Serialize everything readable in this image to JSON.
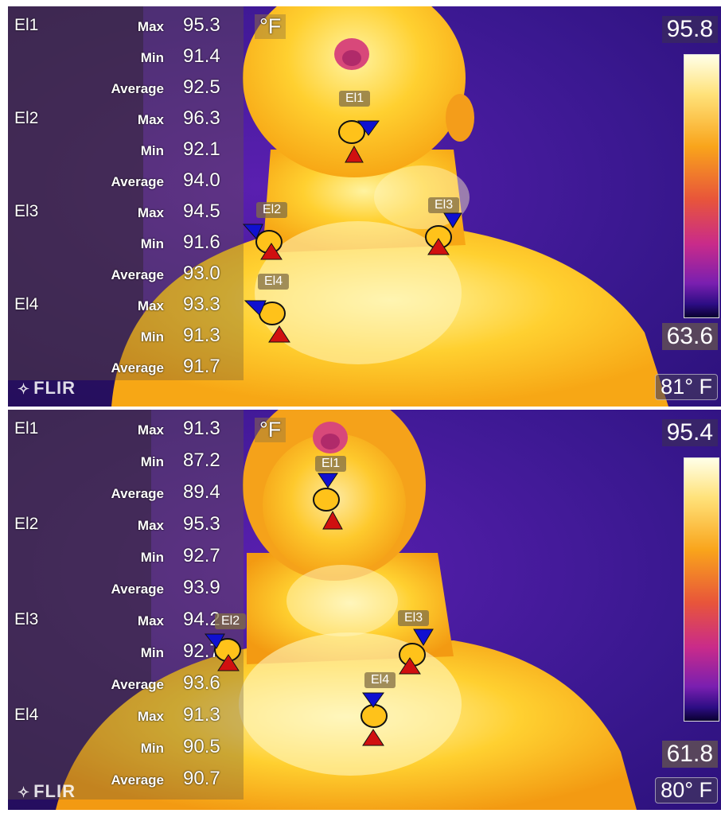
{
  "colors": {
    "background_purple": "#3a1890",
    "body_yellow": "#ffc21a",
    "hot_spot_marker": "#d01010",
    "cold_spot_marker": "#1010d0",
    "text": "#ffffff"
  },
  "top": {
    "unit": "°F",
    "scale_max": "95.8",
    "scale_min": "63.6",
    "mode_label": "81° F",
    "logo": "FLIR",
    "measurements": [
      {
        "id": "El1",
        "stats": [
          {
            "label": "Max",
            "value": "95.3"
          },
          {
            "label": "Min",
            "value": "91.4"
          },
          {
            "label": "Average",
            "value": "92.5"
          }
        ]
      },
      {
        "id": "El2",
        "stats": [
          {
            "label": "Max",
            "value": "96.3"
          },
          {
            "label": "Min",
            "value": "92.1"
          },
          {
            "label": "Average",
            "value": "94.0"
          }
        ]
      },
      {
        "id": "El3",
        "stats": [
          {
            "label": "Max",
            "value": "94.5"
          },
          {
            "label": "Min",
            "value": "91.6"
          },
          {
            "label": "Average",
            "value": "93.0"
          }
        ]
      },
      {
        "id": "El4",
        "stats": [
          {
            "label": "Max",
            "value": "93.3"
          },
          {
            "label": "Min",
            "value": "91.3"
          },
          {
            "label": "Average",
            "value": "91.7"
          }
        ]
      }
    ],
    "tags": [
      "El1",
      "El2",
      "El3",
      "El4"
    ]
  },
  "bottom": {
    "unit": "°F",
    "scale_max": "95.4",
    "scale_min": "61.8",
    "mode_label": "80° F",
    "logo": "FLIR",
    "measurements": [
      {
        "id": "El1",
        "stats": [
          {
            "label": "Max",
            "value": "91.3"
          },
          {
            "label": "Min",
            "value": "87.2"
          },
          {
            "label": "Average",
            "value": "89.4"
          }
        ]
      },
      {
        "id": "El2",
        "stats": [
          {
            "label": "Max",
            "value": "95.3"
          },
          {
            "label": "Min",
            "value": "92.7"
          },
          {
            "label": "Average",
            "value": "93.9"
          }
        ]
      },
      {
        "id": "El3",
        "stats": [
          {
            "label": "Max",
            "value": "94.2"
          },
          {
            "label": "Min",
            "value": "92.7"
          },
          {
            "label": "Average",
            "value": "93.6"
          }
        ]
      },
      {
        "id": "El4",
        "stats": [
          {
            "label": "Max",
            "value": "91.3"
          },
          {
            "label": "Min",
            "value": "90.5"
          },
          {
            "label": "Average",
            "value": "90.7"
          }
        ]
      }
    ],
    "tags": [
      "El1",
      "El2",
      "El3",
      "El4"
    ]
  }
}
